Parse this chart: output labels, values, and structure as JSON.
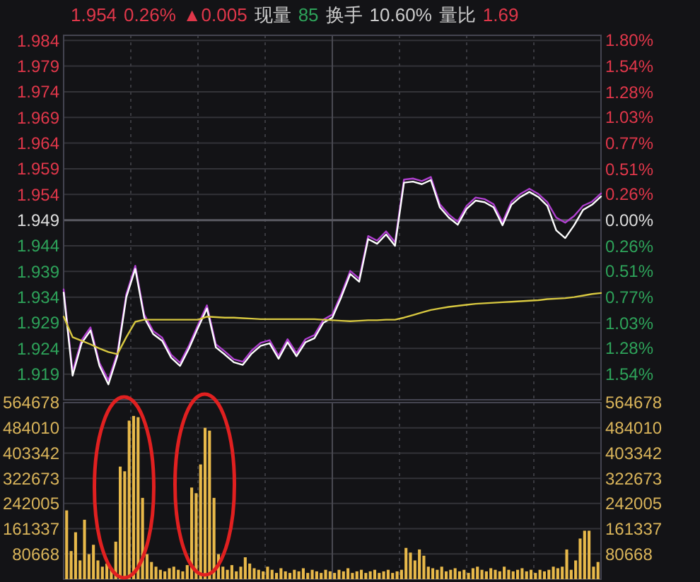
{
  "chart_data": [
    {
      "type": "line",
      "annotations": [
        "1.954",
        "0.26%",
        "▲0.005",
        "现量",
        "85",
        "换手",
        "10.60%",
        "量比",
        "1.69"
      ],
      "categories": [
        null,
        null,
        null,
        null,
        null,
        null,
        null,
        null,
        null,
        null,
        null,
        null,
        null,
        null,
        null,
        null,
        null,
        null,
        null,
        null,
        null,
        null,
        null,
        null,
        null,
        null,
        null,
        null,
        null,
        null,
        null,
        null,
        null,
        null,
        null,
        null,
        null,
        null,
        null,
        null,
        null,
        null,
        null,
        null,
        null,
        null,
        null,
        null,
        null,
        null,
        null,
        null,
        null,
        null,
        null,
        null,
        null,
        null,
        null,
        null,
        null
      ],
      "ylim": [
        1.914,
        1.985
      ],
      "yticks": [
        1.919,
        1.924,
        1.929,
        1.934,
        1.939,
        1.944,
        1.949,
        1.954,
        1.959,
        1.964,
        1.969,
        1.974,
        1.979,
        1.984
      ],
      "y2lim": [
        -1.796,
        1.847
      ],
      "y2ticks": [
        {
          "value": -1.54,
          "label": "1.54%"
        },
        {
          "value": -1.28,
          "label": "1.28%"
        },
        {
          "value": -1.03,
          "label": "1.03%"
        },
        {
          "value": -0.77,
          "label": "0.77%"
        },
        {
          "value": -0.51,
          "label": "0.51%"
        },
        {
          "value": -0.26,
          "label": "0.26%"
        },
        {
          "value": 0,
          "label": "0.00%"
        },
        {
          "value": 0.26,
          "label": "0.26%"
        },
        {
          "value": 0.51,
          "label": "0.51%"
        },
        {
          "value": 0.77,
          "label": "0.77%"
        },
        {
          "value": 1.03,
          "label": "1.03%"
        },
        {
          "value": 1.28,
          "label": "1.28%"
        },
        {
          "value": 1.54,
          "label": "1.54%"
        },
        {
          "value": 1.8,
          "label": "1.80%"
        }
      ],
      "tick_labels": "y",
      "grid": true,
      "ref_lines": [
        {
          "axis": "y",
          "value": 1.949
        }
      ],
      "series": [
        {
          "color": "#b040d0",
          "values": [
            1.9355,
            1.9195,
            1.9256,
            1.9281,
            1.9212,
            1.9178,
            1.9231,
            1.9346,
            1.9401,
            1.9306,
            1.9274,
            1.9261,
            1.9228,
            1.9212,
            1.9246,
            1.9286,
            1.9324,
            1.9248,
            1.9234,
            1.9219,
            1.9214,
            1.9236,
            1.9251,
            1.9256,
            1.9226,
            1.9258,
            1.9231,
            1.9258,
            1.9266,
            1.9296,
            1.9306,
            1.9346,
            1.9391,
            1.9376,
            1.9459,
            1.945,
            1.9468,
            1.9447,
            1.9569,
            1.9571,
            1.9566,
            1.9574,
            1.9521,
            1.9501,
            1.9487,
            1.9518,
            1.9534,
            1.9531,
            1.9521,
            1.9486,
            1.9526,
            1.9541,
            1.9551,
            1.9541,
            1.9525,
            1.9495,
            1.9485,
            1.9498,
            1.9518,
            1.9526,
            1.9542
          ]
        },
        {
          "color": "#ffffff",
          "values": [
            1.9349,
            1.9187,
            1.925,
            1.9275,
            1.9206,
            1.917,
            1.9225,
            1.934,
            1.9395,
            1.93,
            1.9268,
            1.9255,
            1.9222,
            1.9206,
            1.924,
            1.928,
            1.9318,
            1.9242,
            1.9228,
            1.9213,
            1.9208,
            1.923,
            1.9245,
            1.925,
            1.922,
            1.9252,
            1.9225,
            1.9252,
            1.926,
            1.929,
            1.93,
            1.934,
            1.9385,
            1.937,
            1.9453,
            1.9444,
            1.9462,
            1.944,
            1.9563,
            1.9565,
            1.956,
            1.9568,
            1.9515,
            1.9495,
            1.9481,
            1.9512,
            1.9528,
            1.9525,
            1.9515,
            1.948,
            1.952,
            1.9535,
            1.9545,
            1.9535,
            1.9518,
            1.947,
            1.9455,
            1.948,
            1.951,
            1.952,
            1.9536
          ]
        },
        {
          "color": "#d8c840",
          "values": [
            1.9302,
            1.9262,
            1.9255,
            1.9248,
            1.924,
            1.9233,
            1.9229,
            1.9262,
            1.9292,
            1.9296,
            1.9296,
            1.9296,
            1.9296,
            1.9296,
            1.9296,
            1.9296,
            1.9302,
            1.9301,
            1.93,
            1.93,
            1.9299,
            1.9298,
            1.9297,
            1.9297,
            1.9297,
            1.9297,
            1.9297,
            1.9297,
            1.9297,
            1.9296,
            1.9295,
            1.9294,
            1.9293,
            1.9294,
            1.9295,
            1.9295,
            1.9296,
            1.9296,
            1.93,
            1.9305,
            1.931,
            1.9315,
            1.9318,
            1.9321,
            1.9323,
            1.9325,
            1.9327,
            1.9328,
            1.9329,
            1.933,
            1.9331,
            1.9332,
            1.9333,
            1.9334,
            1.9336,
            1.9337,
            1.9338,
            1.934,
            1.9343,
            1.9346,
            1.9348
          ]
        }
      ]
    },
    {
      "type": "bar",
      "color": "#e8b94a",
      "categories": [
        null,
        null,
        null,
        null,
        null,
        null,
        null,
        null,
        null,
        null,
        null,
        null,
        null,
        null,
        null,
        null,
        null,
        null,
        null,
        null,
        null,
        null,
        null,
        null,
        null,
        null,
        null,
        null,
        null,
        null,
        null,
        null,
        null,
        null,
        null,
        null,
        null,
        null,
        null,
        null,
        null,
        null,
        null,
        null,
        null,
        null,
        null,
        null,
        null,
        null,
        null,
        null,
        null,
        null,
        null,
        null,
        null,
        null,
        null,
        null,
        null,
        null,
        null,
        null,
        null,
        null,
        null,
        null,
        null,
        null,
        null,
        null,
        null,
        null,
        null,
        null,
        null,
        null,
        null,
        null,
        null,
        null,
        null,
        null,
        null,
        null,
        null,
        null,
        null,
        null,
        null,
        null,
        null,
        null,
        null,
        null,
        null,
        null,
        null,
        null,
        null,
        null,
        null,
        null,
        null,
        null,
        null,
        null,
        null,
        null,
        null,
        null,
        null,
        null,
        null,
        null,
        null,
        null,
        null,
        null
      ],
      "values": [
        220000,
        90000,
        150000,
        60000,
        190000,
        80000,
        110000,
        60000,
        40000,
        50000,
        30000,
        120000,
        360000,
        345000,
        507000,
        522000,
        518000,
        260000,
        80000,
        55000,
        40000,
        30000,
        25000,
        35000,
        40000,
        30000,
        25000,
        45000,
        293000,
        275000,
        367000,
        484000,
        475000,
        260000,
        80000,
        40000,
        30000,
        45000,
        25000,
        40000,
        70000,
        50000,
        35000,
        30000,
        25000,
        40000,
        30000,
        20000,
        35000,
        25000,
        20000,
        30000,
        25000,
        35000,
        20000,
        30000,
        25000,
        20000,
        30000,
        25000,
        20000,
        30000,
        25000,
        35000,
        20000,
        25000,
        30000,
        20000,
        25000,
        30000,
        20000,
        25000,
        30000,
        20000,
        25000,
        30000,
        100000,
        85000,
        60000,
        95000,
        75000,
        40000,
        35000,
        30000,
        40000,
        25000,
        30000,
        35000,
        25000,
        30000,
        20000,
        35000,
        40000,
        30000,
        25000,
        35000,
        30000,
        25000,
        40000,
        30000,
        25000,
        30000,
        35000,
        25000,
        30000,
        20000,
        30000,
        25000,
        30000,
        40000,
        35000,
        40000,
        95000,
        30000,
        60000,
        130000,
        155000,
        155000,
        40000,
        55000
      ],
      "ylim": [
        0,
        564678
      ],
      "yticks": [
        80668,
        161337,
        242005,
        322673,
        403342,
        484010,
        564678
      ],
      "y2lim": [
        0,
        564678
      ],
      "y2ticks": [
        80668,
        161337,
        242005,
        322673,
        403342,
        484010,
        564678
      ],
      "tick_labels": "y",
      "grid": true
    }
  ]
}
